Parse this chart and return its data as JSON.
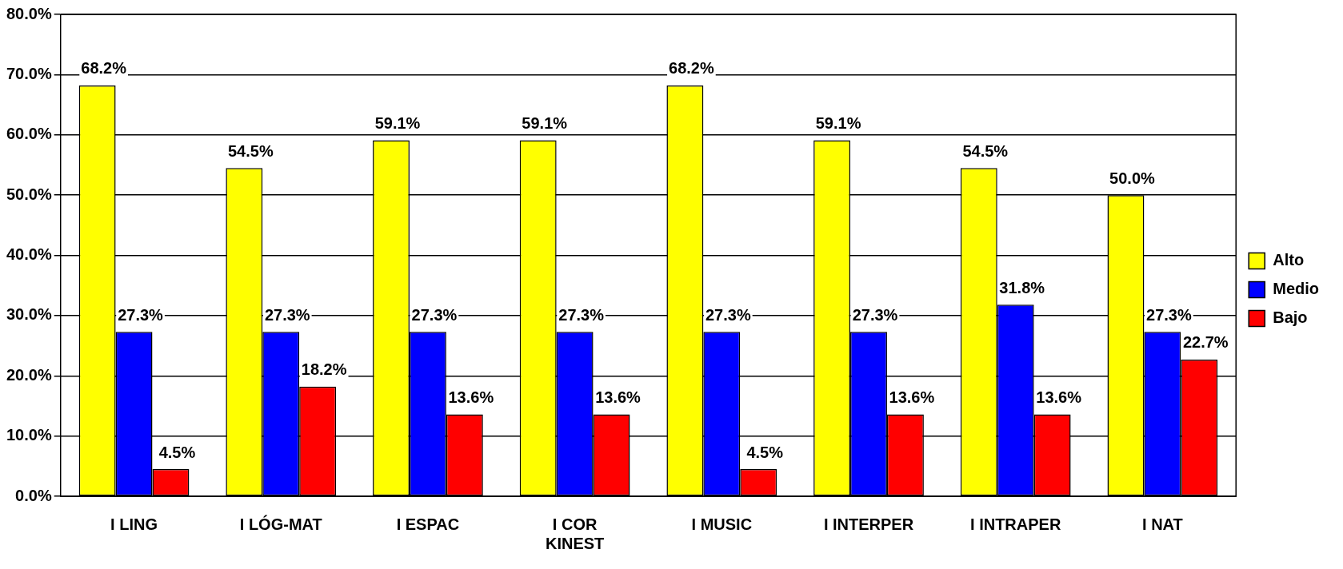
{
  "chart_data": {
    "type": "bar",
    "categories": [
      "I LING",
      "I LÓG-MAT",
      "I ESPAC",
      "I COR KINEST",
      "I MUSIC",
      "I INTERPER",
      "I INTRAPER",
      "I NAT"
    ],
    "series": [
      {
        "name": "Alto",
        "color": "#ffff00",
        "values": [
          68.2,
          54.5,
          59.1,
          59.1,
          68.2,
          59.1,
          54.5,
          50.0
        ],
        "value_labels": [
          "68.2%",
          "54.5%",
          "59.1%",
          "59.1%",
          "68.2%",
          "59.1%",
          "54.5%",
          "50.0%"
        ]
      },
      {
        "name": "Medio",
        "color": "#0000ff",
        "values": [
          27.3,
          27.3,
          27.3,
          27.3,
          27.3,
          27.3,
          31.8,
          27.3
        ],
        "value_labels": [
          "27.3%",
          "27.3%",
          "27.3%",
          "27.3%",
          "27.3%",
          "27.3%",
          "31.8%",
          "27.3%"
        ]
      },
      {
        "name": "Bajo",
        "color": "#ff0000",
        "values": [
          4.5,
          18.2,
          13.6,
          13.6,
          4.5,
          13.6,
          13.6,
          22.7
        ],
        "value_labels": [
          "4.5%",
          "18.2%",
          "13.6%",
          "13.6%",
          "4.5%",
          "13.6%",
          "13.6%",
          "22.7%"
        ]
      }
    ],
    "ylim": [
      0,
      80
    ],
    "yticks": [
      {
        "value": 0,
        "label": "0.0%"
      },
      {
        "value": 10,
        "label": "10.0%"
      },
      {
        "value": 20,
        "label": "20.0%"
      },
      {
        "value": 30,
        "label": "30.0%"
      },
      {
        "value": 40,
        "label": "40.0%"
      },
      {
        "value": 50,
        "label": "50.0%"
      },
      {
        "value": 60,
        "label": "60.0%"
      },
      {
        "value": 70,
        "label": "70.0%"
      },
      {
        "value": 80,
        "label": "80.0%"
      }
    ],
    "grid": "y",
    "legend": "right"
  }
}
